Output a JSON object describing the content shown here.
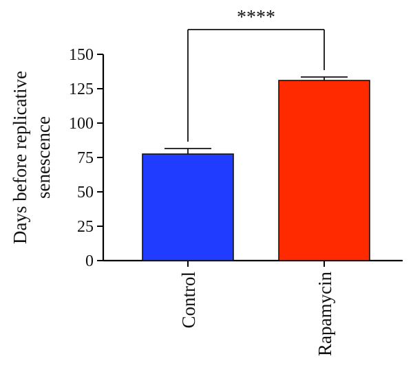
{
  "chart_data": {
    "type": "bar",
    "categories": [
      "Control",
      "Rapamycin"
    ],
    "values": [
      77.5,
      131
    ],
    "error": [
      4,
      2.5
    ],
    "colors": [
      "#1f3cff",
      "#ff2a00"
    ],
    "ylabel_lines": [
      "Days before replicative",
      "senescence"
    ],
    "ylim": [
      0,
      150
    ],
    "yticks": [
      0,
      25,
      50,
      75,
      100,
      125,
      150
    ],
    "significance": {
      "label": "****",
      "between": [
        0,
        1
      ],
      "bracket_y": 168
    }
  }
}
